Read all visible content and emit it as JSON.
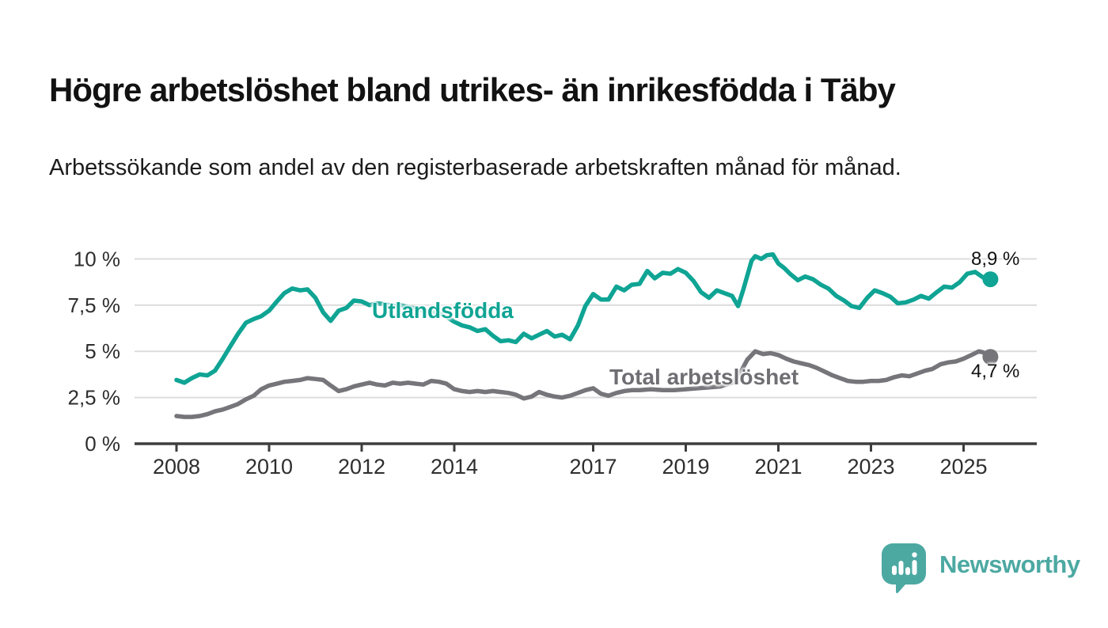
{
  "header": {
    "title": "Högre arbetslöshet bland utrikes- än inrikesfödda i Täby",
    "subtitle": "Arbetssökande som andel av den registerbaserade arbetskraften månad för månad."
  },
  "chart_data": {
    "type": "line",
    "title": "Högre arbetslöshet bland utrikes- än inrikesfödda i Täby",
    "subtitle": "Arbetssökande som andel av den registerbaserade arbetskraften månad för månad.",
    "xlabel": "",
    "ylabel": "",
    "grid": true,
    "legend_position": "inline-labels",
    "x_axis": {
      "ticks": [
        2008,
        2010,
        2012,
        2014,
        2017,
        2019,
        2021,
        2023,
        2025
      ],
      "tick_labels": [
        "2008",
        "2010",
        "2012",
        "2014",
        "2017",
        "2019",
        "2021",
        "2023",
        "2025"
      ],
      "range_years": [
        2007.1,
        2026.6
      ]
    },
    "y_axis": {
      "ticks": [
        0,
        2.5,
        5,
        7.5,
        10
      ],
      "tick_labels": [
        "0 %",
        "2,5 %",
        "5 %",
        "7,5 %",
        "10 %"
      ],
      "range": [
        0,
        10.5
      ],
      "unit": "%"
    },
    "series": [
      {
        "name": "Utlandsfödda",
        "color": "#0FA494",
        "end_value": 8.9,
        "end_label": "8,9 %",
        "points": [
          [
            2008.0,
            3.45
          ],
          [
            2008.17,
            3.3
          ],
          [
            2008.33,
            3.55
          ],
          [
            2008.5,
            3.75
          ],
          [
            2008.67,
            3.7
          ],
          [
            2008.83,
            3.95
          ],
          [
            2009.0,
            4.6
          ],
          [
            2009.17,
            5.3
          ],
          [
            2009.33,
            5.95
          ],
          [
            2009.5,
            6.55
          ],
          [
            2009.67,
            6.75
          ],
          [
            2009.83,
            6.9
          ],
          [
            2010.0,
            7.2
          ],
          [
            2010.17,
            7.7
          ],
          [
            2010.33,
            8.15
          ],
          [
            2010.5,
            8.4
          ],
          [
            2010.67,
            8.3
          ],
          [
            2010.83,
            8.35
          ],
          [
            2011.0,
            7.9
          ],
          [
            2011.17,
            7.1
          ],
          [
            2011.33,
            6.65
          ],
          [
            2011.5,
            7.2
          ],
          [
            2011.67,
            7.35
          ],
          [
            2011.83,
            7.75
          ],
          [
            2012.0,
            7.7
          ],
          [
            2012.17,
            7.5
          ],
          [
            2012.33,
            7.6
          ],
          [
            2012.5,
            7.55
          ],
          [
            2012.67,
            7.45
          ],
          [
            2012.83,
            7.5
          ],
          [
            2013.0,
            7.4
          ],
          [
            2013.25,
            7.25
          ],
          [
            2013.5,
            7.15
          ],
          [
            2013.75,
            7.0
          ],
          [
            2014.0,
            6.6
          ],
          [
            2014.17,
            6.4
          ],
          [
            2014.33,
            6.3
          ],
          [
            2014.5,
            6.1
          ],
          [
            2014.67,
            6.2
          ],
          [
            2014.83,
            5.85
          ],
          [
            2015.0,
            5.55
          ],
          [
            2015.17,
            5.6
          ],
          [
            2015.33,
            5.5
          ],
          [
            2015.5,
            5.95
          ],
          [
            2015.67,
            5.7
          ],
          [
            2015.83,
            5.9
          ],
          [
            2016.0,
            6.1
          ],
          [
            2016.17,
            5.8
          ],
          [
            2016.33,
            5.9
          ],
          [
            2016.5,
            5.65
          ],
          [
            2016.67,
            6.4
          ],
          [
            2016.83,
            7.45
          ],
          [
            2017.0,
            8.1
          ],
          [
            2017.17,
            7.8
          ],
          [
            2017.33,
            7.8
          ],
          [
            2017.5,
            8.5
          ],
          [
            2017.67,
            8.3
          ],
          [
            2017.83,
            8.6
          ],
          [
            2018.0,
            8.65
          ],
          [
            2018.17,
            9.35
          ],
          [
            2018.33,
            8.95
          ],
          [
            2018.5,
            9.25
          ],
          [
            2018.67,
            9.2
          ],
          [
            2018.83,
            9.45
          ],
          [
            2019.0,
            9.25
          ],
          [
            2019.17,
            8.8
          ],
          [
            2019.33,
            8.2
          ],
          [
            2019.5,
            7.9
          ],
          [
            2019.67,
            8.3
          ],
          [
            2019.83,
            8.15
          ],
          [
            2020.0,
            8.0
          ],
          [
            2020.13,
            7.45
          ],
          [
            2020.25,
            8.4
          ],
          [
            2020.42,
            9.9
          ],
          [
            2020.5,
            10.15
          ],
          [
            2020.63,
            10.0
          ],
          [
            2020.75,
            10.2
          ],
          [
            2020.88,
            10.25
          ],
          [
            2021.0,
            9.75
          ],
          [
            2021.13,
            9.5
          ],
          [
            2021.25,
            9.2
          ],
          [
            2021.42,
            8.85
          ],
          [
            2021.58,
            9.05
          ],
          [
            2021.75,
            8.9
          ],
          [
            2021.92,
            8.6
          ],
          [
            2022.08,
            8.4
          ],
          [
            2022.25,
            8.0
          ],
          [
            2022.42,
            7.75
          ],
          [
            2022.58,
            7.45
          ],
          [
            2022.75,
            7.35
          ],
          [
            2022.92,
            7.9
          ],
          [
            2023.08,
            8.3
          ],
          [
            2023.25,
            8.15
          ],
          [
            2023.42,
            7.95
          ],
          [
            2023.58,
            7.6
          ],
          [
            2023.75,
            7.65
          ],
          [
            2023.92,
            7.8
          ],
          [
            2024.08,
            8.0
          ],
          [
            2024.25,
            7.85
          ],
          [
            2024.42,
            8.2
          ],
          [
            2024.58,
            8.5
          ],
          [
            2024.75,
            8.45
          ],
          [
            2024.92,
            8.75
          ],
          [
            2025.08,
            9.2
          ],
          [
            2025.25,
            9.3
          ],
          [
            2025.42,
            9.0
          ],
          [
            2025.58,
            8.9
          ]
        ]
      },
      {
        "name": "Total arbetslöshet",
        "color": "#75757A",
        "end_value": 4.7,
        "end_label": "4,7 %",
        "points": [
          [
            2008.0,
            1.5
          ],
          [
            2008.17,
            1.45
          ],
          [
            2008.33,
            1.45
          ],
          [
            2008.5,
            1.5
          ],
          [
            2008.67,
            1.6
          ],
          [
            2008.83,
            1.75
          ],
          [
            2009.0,
            1.85
          ],
          [
            2009.17,
            2.0
          ],
          [
            2009.33,
            2.15
          ],
          [
            2009.5,
            2.4
          ],
          [
            2009.67,
            2.6
          ],
          [
            2009.83,
            2.95
          ],
          [
            2010.0,
            3.15
          ],
          [
            2010.17,
            3.25
          ],
          [
            2010.33,
            3.35
          ],
          [
            2010.5,
            3.4
          ],
          [
            2010.67,
            3.45
          ],
          [
            2010.83,
            3.55
          ],
          [
            2011.0,
            3.5
          ],
          [
            2011.17,
            3.45
          ],
          [
            2011.33,
            3.15
          ],
          [
            2011.5,
            2.85
          ],
          [
            2011.67,
            2.95
          ],
          [
            2011.83,
            3.1
          ],
          [
            2012.0,
            3.2
          ],
          [
            2012.17,
            3.3
          ],
          [
            2012.33,
            3.2
          ],
          [
            2012.5,
            3.15
          ],
          [
            2012.67,
            3.3
          ],
          [
            2012.83,
            3.25
          ],
          [
            2013.0,
            3.3
          ],
          [
            2013.17,
            3.25
          ],
          [
            2013.33,
            3.2
          ],
          [
            2013.5,
            3.4
          ],
          [
            2013.67,
            3.35
          ],
          [
            2013.83,
            3.25
          ],
          [
            2014.0,
            2.95
          ],
          [
            2014.17,
            2.85
          ],
          [
            2014.33,
            2.8
          ],
          [
            2014.5,
            2.85
          ],
          [
            2014.67,
            2.8
          ],
          [
            2014.83,
            2.85
          ],
          [
            2015.0,
            2.8
          ],
          [
            2015.17,
            2.75
          ],
          [
            2015.33,
            2.65
          ],
          [
            2015.5,
            2.45
          ],
          [
            2015.67,
            2.55
          ],
          [
            2015.83,
            2.8
          ],
          [
            2016.0,
            2.65
          ],
          [
            2016.17,
            2.55
          ],
          [
            2016.33,
            2.5
          ],
          [
            2016.5,
            2.6
          ],
          [
            2016.67,
            2.75
          ],
          [
            2016.83,
            2.9
          ],
          [
            2017.0,
            3.0
          ],
          [
            2017.17,
            2.7
          ],
          [
            2017.33,
            2.6
          ],
          [
            2017.5,
            2.75
          ],
          [
            2017.67,
            2.85
          ],
          [
            2017.83,
            2.9
          ],
          [
            2018.0,
            2.9
          ],
          [
            2018.25,
            2.95
          ],
          [
            2018.5,
            2.9
          ],
          [
            2018.75,
            2.9
          ],
          [
            2019.0,
            2.95
          ],
          [
            2019.25,
            3.0
          ],
          [
            2019.5,
            3.05
          ],
          [
            2019.75,
            3.1
          ],
          [
            2020.0,
            3.3
          ],
          [
            2020.17,
            3.8
          ],
          [
            2020.33,
            4.55
          ],
          [
            2020.5,
            5.0
          ],
          [
            2020.67,
            4.85
          ],
          [
            2020.83,
            4.9
          ],
          [
            2021.0,
            4.8
          ],
          [
            2021.17,
            4.6
          ],
          [
            2021.33,
            4.45
          ],
          [
            2021.5,
            4.35
          ],
          [
            2021.67,
            4.25
          ],
          [
            2021.83,
            4.1
          ],
          [
            2022.0,
            3.9
          ],
          [
            2022.17,
            3.7
          ],
          [
            2022.33,
            3.55
          ],
          [
            2022.5,
            3.4
          ],
          [
            2022.67,
            3.35
          ],
          [
            2022.83,
            3.35
          ],
          [
            2023.0,
            3.4
          ],
          [
            2023.17,
            3.4
          ],
          [
            2023.33,
            3.45
          ],
          [
            2023.5,
            3.6
          ],
          [
            2023.67,
            3.7
          ],
          [
            2023.83,
            3.65
          ],
          [
            2024.0,
            3.8
          ],
          [
            2024.17,
            3.95
          ],
          [
            2024.33,
            4.05
          ],
          [
            2024.5,
            4.3
          ],
          [
            2024.67,
            4.4
          ],
          [
            2024.83,
            4.45
          ],
          [
            2025.0,
            4.6
          ],
          [
            2025.17,
            4.8
          ],
          [
            2025.33,
            5.0
          ],
          [
            2025.42,
            4.95
          ],
          [
            2025.58,
            4.7
          ]
        ]
      }
    ]
  },
  "branding": {
    "logo_text": "Newsworthy",
    "logo_color": "#4CA9A2"
  },
  "colors": {
    "grid": "#DCDCDC",
    "axis": "#3D3D3D",
    "tick_text": "#2E2E2E"
  }
}
